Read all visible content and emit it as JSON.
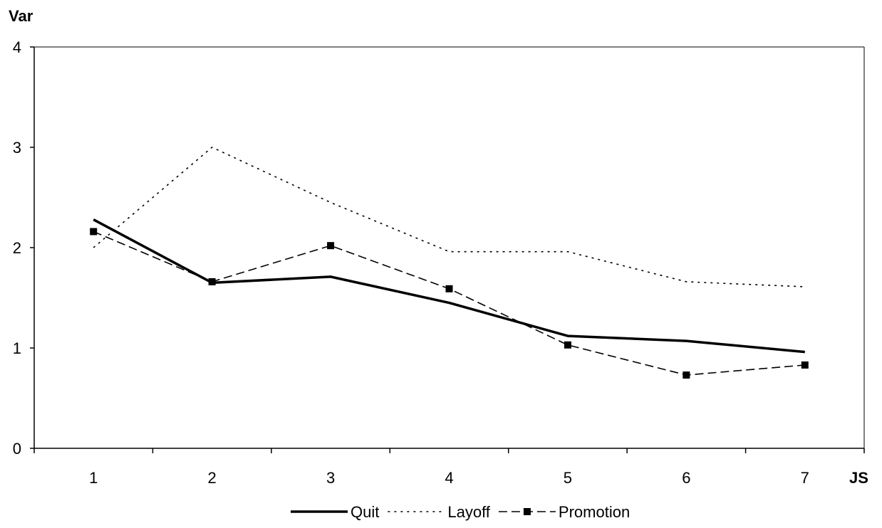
{
  "chart_data": {
    "type": "line",
    "title": "",
    "xlabel": "JS",
    "ylabel": "Var",
    "categories": [
      "1",
      "2",
      "3",
      "4",
      "5",
      "6",
      "7"
    ],
    "ylim": [
      0,
      4
    ],
    "yticks": [
      0,
      1,
      2,
      3,
      4
    ],
    "grid": false,
    "legend_position": "bottom",
    "series": [
      {
        "name": "Quit",
        "values": [
          2.28,
          1.65,
          1.71,
          1.45,
          1.12,
          1.07,
          0.96
        ],
        "color": "#000000",
        "style": "solid",
        "marker": "none"
      },
      {
        "name": "Layoff",
        "values": [
          2.0,
          3.0,
          2.45,
          1.96,
          1.96,
          1.66,
          1.61
        ],
        "color": "#000000",
        "style": "dotted",
        "marker": "none"
      },
      {
        "name": "Promotion",
        "values": [
          2.16,
          1.66,
          2.02,
          1.59,
          1.03,
          0.73,
          0.83
        ],
        "color": "#000000",
        "style": "dashed",
        "marker": "square"
      }
    ]
  }
}
